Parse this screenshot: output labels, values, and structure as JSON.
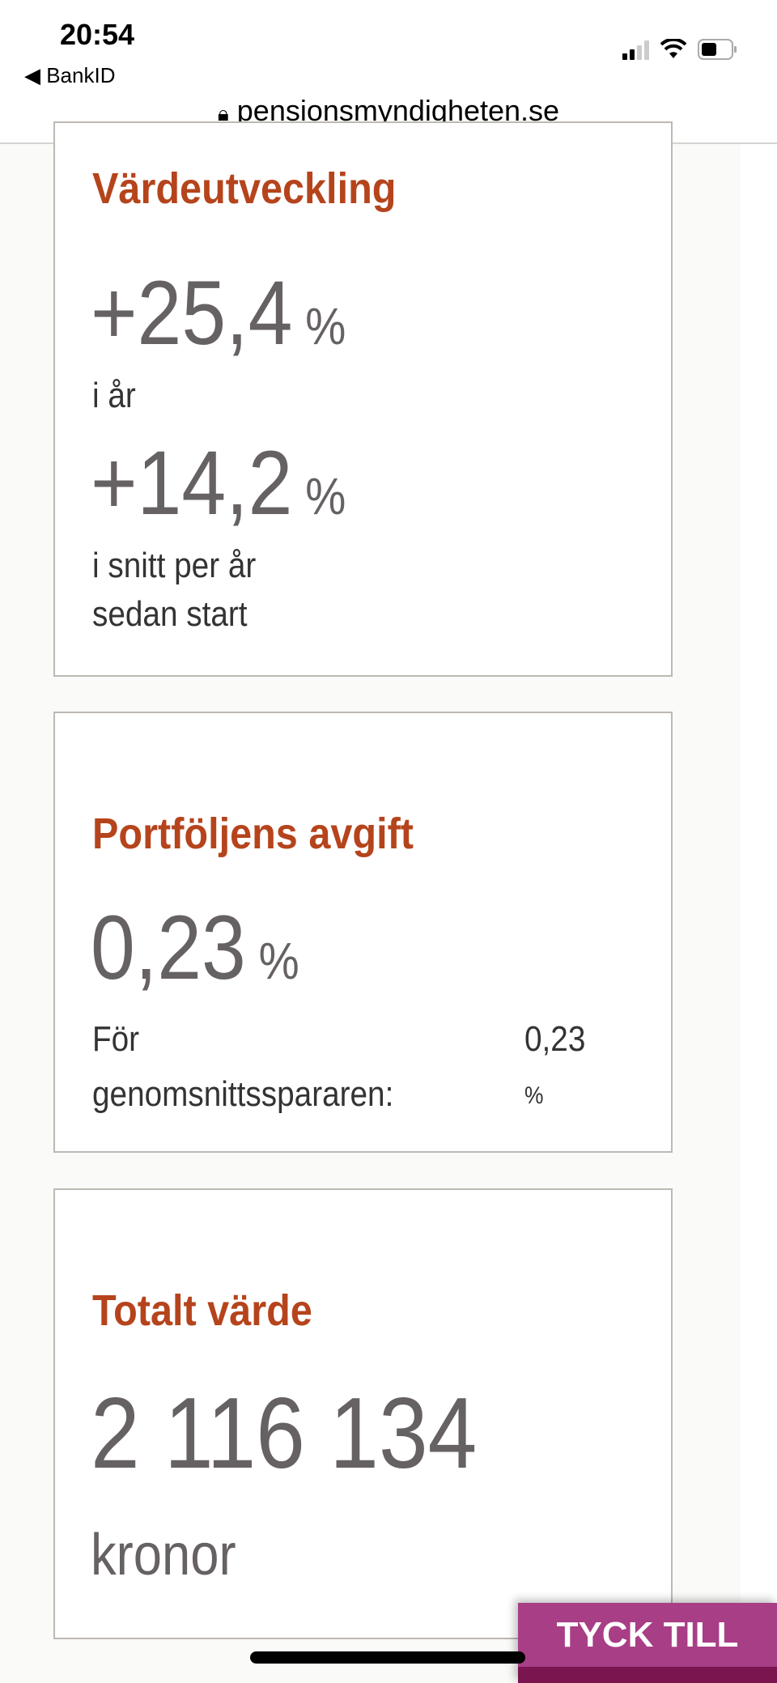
{
  "status_bar": {
    "time": "20:54",
    "back_app": "BankID",
    "url": "pensionsmyndigheten.se",
    "icons": [
      "signal-icon",
      "wifi-icon",
      "battery-icon",
      "lock-icon"
    ]
  },
  "cards": {
    "value_development": {
      "title": "Värdeutveckling",
      "this_year": {
        "value": "+25,4",
        "unit": "%",
        "label": "i år"
      },
      "average": {
        "value": "+14,2",
        "unit": "%",
        "label_line1": "i snitt per år",
        "label_line2": "sedan start"
      }
    },
    "fee": {
      "title": "Portföljens avgift",
      "value": "0,23",
      "unit": "%",
      "average_label_line1": "För",
      "average_label_line2": "genomsnittsspararen:",
      "average_value": "0,23",
      "average_unit": "%"
    },
    "total": {
      "title": "Totalt värde",
      "value": "2 116 134",
      "unit": "kronor"
    }
  },
  "feedback_button": "TYCK TILL",
  "colors": {
    "heading": "#b5441c",
    "value": "#666163",
    "feedback": "#a83e86"
  }
}
